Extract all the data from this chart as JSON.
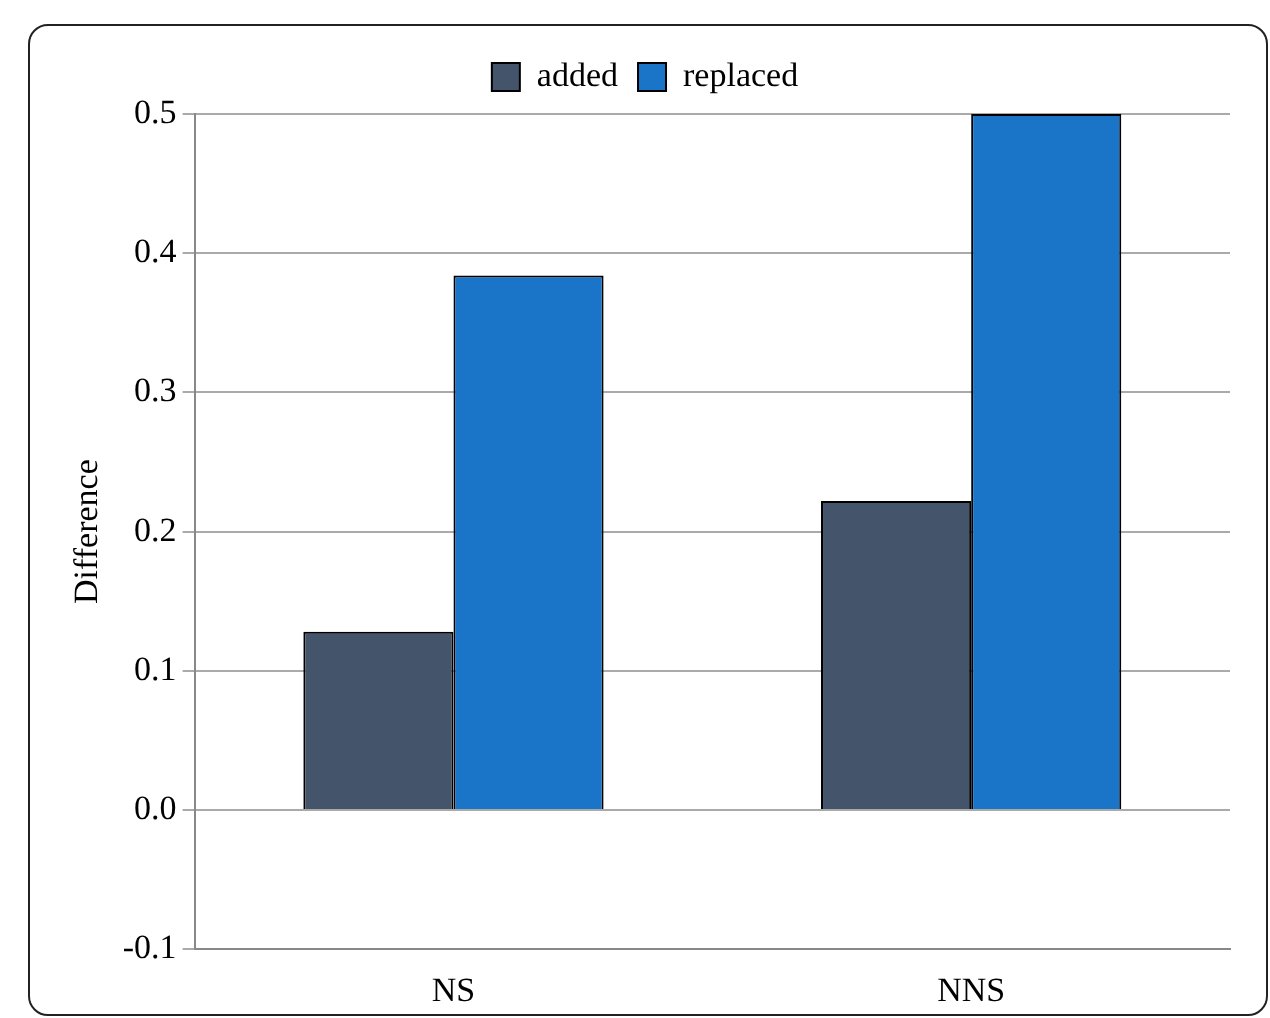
{
  "chart_data": {
    "type": "bar",
    "ylabel": "Difference",
    "categories": [
      "NS",
      "NNS"
    ],
    "series": [
      {
        "name": "added",
        "color": "#44546a",
        "values": [
          0.128,
          0.222
        ]
      },
      {
        "name": "replaced",
        "color": "#1a75c8",
        "values": [
          0.384,
          0.5
        ]
      }
    ],
    "ylim": [
      -0.1,
      0.5
    ],
    "yticks": [
      {
        "value": -0.1,
        "label": "-0.1"
      },
      {
        "value": 0,
        "label": "0.0"
      },
      {
        "value": 0.1,
        "label": "0.1"
      },
      {
        "value": 0.2,
        "label": "0.2"
      },
      {
        "value": 0.3,
        "label": "0.3"
      },
      {
        "value": 0.4,
        "label": "0.4"
      },
      {
        "value": 0.5,
        "label": "0.5"
      }
    ],
    "grid": "y",
    "legend": "top"
  }
}
